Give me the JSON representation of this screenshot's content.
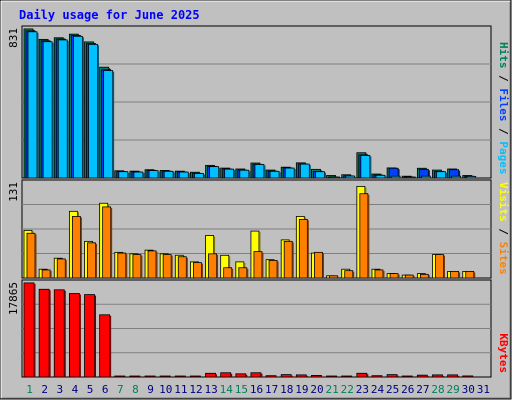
{
  "title": "Daily usage for June 2025",
  "colors": {
    "frame_bg": "#c0c0c0",
    "plot_bg": "#c0c0c0",
    "title": "#0000ff",
    "hits": "#00805c",
    "files": "#0040ff",
    "pages": "#00c0ff",
    "visits": "#ffff00",
    "sites": "#ff8000",
    "kbytes": "#ff0000",
    "weekend_day": "#00805c",
    "weekday": "#000080"
  },
  "chart_data": [
    {
      "type": "bar",
      "panel": "top",
      "ymax_label": "831",
      "ylim": [
        0,
        831
      ],
      "legend": [
        "Pages",
        "Files",
        "Hits"
      ],
      "categories": [
        "1",
        "2",
        "3",
        "4",
        "5",
        "6",
        "7",
        "8",
        "9",
        "10",
        "11",
        "12",
        "13",
        "14",
        "15",
        "16",
        "17",
        "18",
        "19",
        "20",
        "21",
        "22",
        "23",
        "24",
        "25",
        "26",
        "27",
        "28",
        "29",
        "30",
        "31"
      ],
      "series": [
        {
          "name": "Hits",
          "color": "hits",
          "values": [
            826,
            768,
            777,
            797,
            754,
            614,
            40,
            38,
            46,
            42,
            38,
            32,
            70,
            55,
            50,
            83,
            44,
            60,
            84,
            48,
            14,
            18,
            140,
            22,
            56,
            10,
            54,
            44,
            50,
            14,
            0
          ]
        },
        {
          "name": "Files",
          "color": "files",
          "values": [
            815,
            760,
            770,
            790,
            745,
            600,
            36,
            34,
            42,
            38,
            34,
            26,
            64,
            50,
            44,
            76,
            38,
            56,
            78,
            36,
            4,
            12,
            128,
            16,
            54,
            6,
            48,
            36,
            46,
            10,
            0
          ]
        },
        {
          "name": "Pages",
          "color": "pages",
          "values": [
            810,
            755,
            765,
            785,
            740,
            595,
            35,
            33,
            41,
            37,
            33,
            25,
            63,
            49,
            43,
            75,
            37,
            55,
            77,
            35,
            3,
            11,
            125,
            15,
            10,
            5,
            10,
            35,
            10,
            9,
            0
          ]
        }
      ]
    },
    {
      "type": "bar",
      "panel": "middle",
      "ymax_label": "131",
      "ylim": [
        0,
        131
      ],
      "legend": [
        "Sites",
        "Visits"
      ],
      "categories": [
        "1",
        "2",
        "3",
        "4",
        "5",
        "6",
        "7",
        "8",
        "9",
        "10",
        "11",
        "12",
        "13",
        "14",
        "15",
        "16",
        "17",
        "18",
        "19",
        "20",
        "21",
        "22",
        "23",
        "24",
        "25",
        "26",
        "27",
        "28",
        "29",
        "30",
        "31"
      ],
      "series": [
        {
          "name": "Visits",
          "color": "visits",
          "values": [
            65,
            12,
            27,
            91,
            50,
            102,
            35,
            33,
            38,
            33,
            31,
            22,
            58,
            31,
            22,
            64,
            25,
            52,
            84,
            34,
            3,
            12,
            125,
            12,
            6,
            4,
            6,
            32,
            9,
            9,
            0
          ]
        },
        {
          "name": "Sites",
          "color": "sites",
          "values": [
            61,
            11,
            26,
            84,
            48,
            97,
            34,
            32,
            37,
            32,
            29,
            21,
            33,
            14,
            14,
            36,
            24,
            50,
            80,
            35,
            3,
            10,
            115,
            11,
            6,
            4,
            5,
            32,
            9,
            9,
            0
          ]
        }
      ]
    },
    {
      "type": "bar",
      "panel": "bottom",
      "ymax_label": "17865",
      "ylim": [
        0,
        17865
      ],
      "legend": [
        "KBytes"
      ],
      "categories": [
        "1",
        "2",
        "3",
        "4",
        "5",
        "6",
        "7",
        "8",
        "9",
        "10",
        "11",
        "12",
        "13",
        "14",
        "15",
        "16",
        "17",
        "18",
        "19",
        "20",
        "21",
        "22",
        "23",
        "24",
        "25",
        "26",
        "27",
        "28",
        "29",
        "30",
        "31"
      ],
      "series": [
        {
          "name": "KBytes",
          "color": "kbytes",
          "values": [
            17700,
            16500,
            16400,
            15700,
            15500,
            11700,
            150,
            150,
            180,
            160,
            150,
            150,
            700,
            800,
            600,
            800,
            250,
            450,
            400,
            300,
            160,
            160,
            700,
            250,
            450,
            160,
            350,
            400,
            400,
            200,
            0
          ]
        }
      ]
    }
  ],
  "x_axis": {
    "days": [
      "1",
      "2",
      "3",
      "4",
      "5",
      "6",
      "7",
      "8",
      "9",
      "10",
      "11",
      "12",
      "13",
      "14",
      "15",
      "16",
      "17",
      "18",
      "19",
      "20",
      "21",
      "22",
      "23",
      "24",
      "25",
      "26",
      "27",
      "28",
      "29",
      "30",
      "31"
    ],
    "weekend": [
      "1",
      "7",
      "8",
      "14",
      "15",
      "21",
      "22",
      "28",
      "29"
    ]
  }
}
